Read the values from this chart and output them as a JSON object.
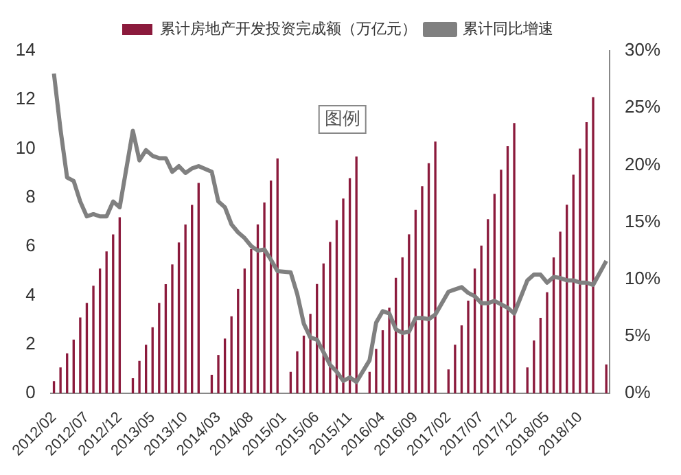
{
  "chart_data": {
    "type": "bar",
    "categories": [
      "2012/02",
      null,
      null,
      null,
      null,
      "2012/07",
      null,
      null,
      null,
      null,
      "2012/12",
      null,
      null,
      null,
      null,
      "2013/05",
      null,
      null,
      null,
      null,
      "2013/10",
      null,
      null,
      null,
      null,
      "2014/03",
      null,
      null,
      null,
      null,
      "2014/08",
      null,
      null,
      null,
      null,
      "2015/01",
      null,
      null,
      null,
      null,
      "2015/06",
      null,
      null,
      null,
      null,
      "2015/11",
      null,
      null,
      null,
      null,
      "2016/04",
      null,
      null,
      null,
      null,
      "2016/09",
      null,
      null,
      null,
      null,
      "2017/02",
      null,
      null,
      null,
      null,
      "2017/07",
      null,
      null,
      null,
      null,
      "2017/12",
      null,
      null,
      null,
      null,
      "2018/05",
      null,
      null,
      null,
      null,
      "2018/10",
      null,
      null,
      null,
      null
    ],
    "series": [
      {
        "name": "累计房地产开发投资完成额（万亿元）",
        "color": "#8b1a3c",
        "values": [
          0.5,
          1.06,
          1.64,
          2.2,
          3.1,
          3.7,
          4.4,
          5.1,
          5.8,
          6.5,
          7.2,
          null,
          0.62,
          1.33,
          1.99,
          2.7,
          3.7,
          4.46,
          5.27,
          6.17,
          6.9,
          7.7,
          8.6,
          null,
          0.76,
          1.57,
          2.24,
          3.15,
          4.27,
          5.1,
          5.9,
          6.9,
          7.8,
          8.7,
          9.6,
          null,
          0.88,
          1.72,
          2.36,
          3.25,
          4.47,
          5.31,
          6.19,
          7.08,
          7.96,
          8.8,
          9.68,
          null,
          0.88,
          1.82,
          2.58,
          3.5,
          4.72,
          5.56,
          6.5,
          7.5,
          8.47,
          9.41,
          10.29,
          null,
          0.98,
          1.99,
          2.78,
          3.79,
          5.1,
          6.04,
          7.12,
          8.15,
          9.14,
          10.1,
          11.05,
          null,
          1.06,
          2.16,
          3.09,
          4.13,
          5.56,
          6.61,
          7.71,
          8.94,
          10.0,
          11.08,
          12.11,
          null,
          1.18
        ]
      },
      {
        "name": "累计同比增速",
        "type": "line",
        "axis": "y2",
        "color": "#808080",
        "values": [
          28.0,
          23.1,
          18.9,
          18.6,
          16.8,
          15.5,
          15.7,
          15.5,
          15.5,
          16.8,
          16.3,
          null,
          23.0,
          20.4,
          21.3,
          20.8,
          20.6,
          20.6,
          19.4,
          19.9,
          19.3,
          19.7,
          19.9,
          null,
          19.4,
          16.8,
          16.3,
          14.8,
          14.1,
          13.6,
          12.9,
          12.5,
          12.6,
          11.7,
          10.7,
          null,
          10.6,
          8.7,
          6.1,
          4.9,
          4.7,
          3.6,
          2.5,
          1.9,
          1.1,
          1.4,
          1.0,
          null,
          2.9,
          6.2,
          7.2,
          7.0,
          5.6,
          5.3,
          5.4,
          6.6,
          6.6,
          6.5,
          6.9,
          null,
          8.9,
          9.1,
          9.3,
          8.8,
          8.5,
          7.9,
          7.9,
          8.1,
          7.8,
          7.5,
          7.0,
          null,
          9.9,
          10.4,
          10.4,
          9.7,
          10.2,
          10.1,
          9.9,
          9.9,
          9.7,
          9.7,
          9.5,
          null,
          11.6
        ]
      }
    ],
    "ylim": [
      0,
      14
    ],
    "yticks": [
      0,
      2,
      4,
      6,
      8,
      10,
      12,
      14
    ],
    "y2lim": [
      0,
      30
    ],
    "y2ticks": [
      {
        "value": 0,
        "label": "0%"
      },
      {
        "value": 5,
        "label": "5%"
      },
      {
        "value": 10,
        "label": "10%"
      },
      {
        "value": 15,
        "label": "15%"
      },
      {
        "value": 20,
        "label": "20%"
      },
      {
        "value": 25,
        "label": "25%"
      },
      {
        "value": 30,
        "label": "30%"
      }
    ],
    "annotations": [
      "图例"
    ],
    "legend": "top",
    "grid": false,
    "marker": "none",
    "line_style": "solid"
  }
}
